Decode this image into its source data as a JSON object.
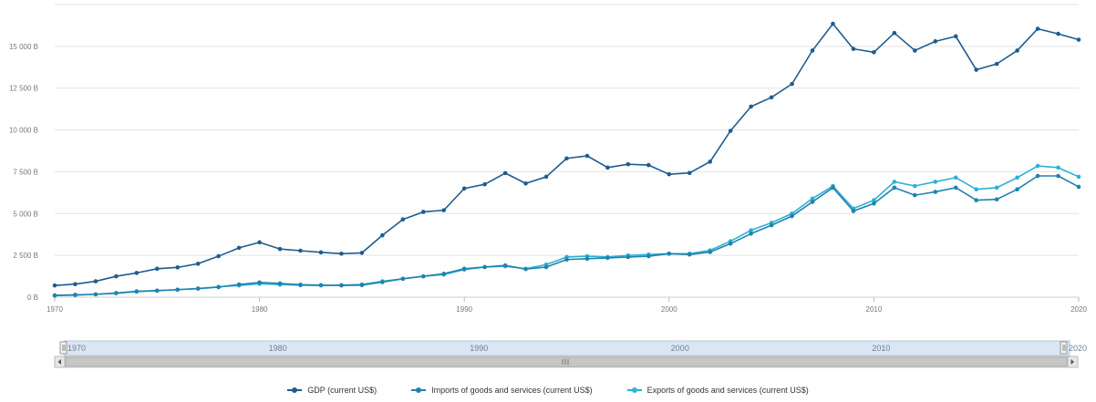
{
  "chart_data": {
    "type": "line",
    "x": [
      1970,
      1971,
      1972,
      1973,
      1974,
      1975,
      1976,
      1977,
      1978,
      1979,
      1980,
      1981,
      1982,
      1983,
      1984,
      1985,
      1986,
      1987,
      1988,
      1989,
      1990,
      1991,
      1992,
      1993,
      1994,
      1995,
      1996,
      1997,
      1998,
      1999,
      2000,
      2001,
      2002,
      2003,
      2004,
      2005,
      2006,
      2007,
      2008,
      2009,
      2010,
      2011,
      2012,
      2013,
      2014,
      2015,
      2016,
      2017,
      2018,
      2019,
      2020
    ],
    "xlim": [
      1970,
      2020
    ],
    "ylim": [
      0,
      17500
    ],
    "ytick_values": [
      0,
      2500,
      5000,
      7500,
      10000,
      12500,
      15000
    ],
    "ytick_labels": [
      "0 B",
      "2 500 B",
      "5 000 B",
      "7 500 B",
      "10 000 B",
      "12 500 B",
      "15 000 B"
    ],
    "xtick_values": [
      1970,
      1980,
      1990,
      2000,
      2010,
      2020
    ],
    "xtick_labels": [
      "1970",
      "1980",
      "1990",
      "2000",
      "2010",
      "2020"
    ],
    "grid": true,
    "legend_position": "bottom-center",
    "series": [
      {
        "name": "GDP (current US$)",
        "color": "#1f5c8f",
        "values": [
          700,
          780,
          950,
          1250,
          1450,
          1700,
          1780,
          2000,
          2450,
          2950,
          3280,
          2880,
          2780,
          2680,
          2600,
          2650,
          3700,
          4650,
          5100,
          5200,
          6500,
          6750,
          7420,
          6800,
          7200,
          8300,
          8450,
          7750,
          7950,
          7900,
          7350,
          7430,
          8100,
          9950,
          11400,
          11950,
          12750,
          14750,
          16350,
          14850,
          14650,
          15800,
          14750,
          15300,
          15600,
          13600,
          13950,
          14750,
          16050,
          15750,
          15400
        ]
      },
      {
        "name": "Imports of goods and services (current US$)",
        "color": "#1f83ad",
        "values": [
          110,
          140,
          170,
          250,
          350,
          390,
          450,
          510,
          600,
          760,
          880,
          820,
          750,
          720,
          700,
          720,
          900,
          1100,
          1250,
          1400,
          1700,
          1800,
          1900,
          1680,
          1800,
          2250,
          2300,
          2350,
          2400,
          2450,
          2600,
          2550,
          2700,
          3200,
          3800,
          4300,
          4850,
          5700,
          6550,
          5150,
          5600,
          6550,
          6100,
          6300,
          6550,
          5800,
          5850,
          6450,
          7250,
          7250,
          6600
        ]
      },
      {
        "name": "Exports of goods and services (current US$)",
        "color": "#2fb0d6",
        "values": [
          90,
          120,
          170,
          230,
          330,
          390,
          450,
          520,
          620,
          700,
          800,
          750,
          710,
          700,
          720,
          760,
          950,
          1100,
          1250,
          1350,
          1650,
          1800,
          1850,
          1700,
          1950,
          2400,
          2450,
          2400,
          2500,
          2550,
          2600,
          2600,
          2800,
          3350,
          4000,
          4450,
          5000,
          5900,
          6650,
          5300,
          5800,
          6900,
          6650,
          6900,
          7150,
          6450,
          6550,
          7150,
          7850,
          7750,
          7200
        ]
      }
    ]
  },
  "navigator": {
    "labels": [
      "1970",
      "1980",
      "1990",
      "2000",
      "2010",
      "2020"
    ]
  }
}
